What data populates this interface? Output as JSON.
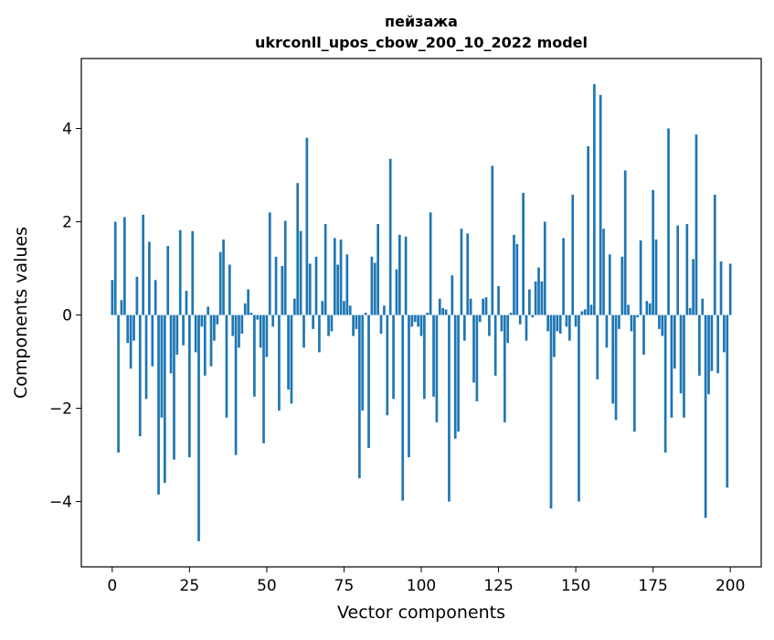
{
  "chart_data": {
    "type": "bar",
    "title_line1": "пейзажа",
    "title_line2": "ukrconll_upos_cbow_200_10_2022 model",
    "xlabel": "Vector components",
    "ylabel": "Components values",
    "xlim": [
      -10,
      210
    ],
    "ylim": [
      -5.4,
      5.5
    ],
    "xticks": [
      0,
      25,
      50,
      75,
      100,
      125,
      150,
      175,
      200
    ],
    "yticks": [
      -4,
      -2,
      0,
      2,
      4
    ],
    "ytick_labels": [
      "−4",
      "−2",
      "0",
      "2",
      "4"
    ],
    "bar_color": "#1f77b4",
    "grid": false,
    "values": [
      0.75,
      2.0,
      -2.95,
      0.32,
      2.1,
      -0.6,
      -1.15,
      -0.55,
      0.82,
      -2.6,
      2.15,
      -1.8,
      1.57,
      -1.1,
      0.75,
      -3.85,
      -2.2,
      -3.6,
      1.48,
      -1.25,
      -3.1,
      -0.85,
      1.82,
      -0.65,
      0.52,
      -3.05,
      1.8,
      -0.8,
      -4.85,
      -0.25,
      -1.3,
      0.18,
      -1.1,
      -0.55,
      -0.2,
      1.35,
      1.62,
      -2.2,
      1.08,
      -0.45,
      -3.0,
      -0.7,
      -0.4,
      0.25,
      0.55,
      0.05,
      -1.75,
      -0.1,
      -0.7,
      -2.75,
      -0.9,
      2.2,
      -0.25,
      1.25,
      -2.05,
      1.05,
      2.02,
      -1.6,
      -1.9,
      0.35,
      2.83,
      1.8,
      -0.7,
      3.8,
      1.1,
      -0.3,
      1.25,
      -0.8,
      0.3,
      1.95,
      -0.45,
      -0.35,
      1.65,
      1.08,
      1.62,
      0.3,
      1.3,
      0.2,
      -0.45,
      -0.3,
      -3.5,
      -2.05,
      0.05,
      -2.85,
      1.25,
      1.12,
      1.95,
      -0.4,
      0.2,
      -2.15,
      3.35,
      -1.8,
      0.98,
      1.72,
      -3.98,
      1.68,
      -3.05,
      -0.25,
      -0.15,
      -0.25,
      -0.45,
      -1.8,
      0.05,
      2.2,
      -1.75,
      -2.3,
      0.35,
      0.15,
      0.12,
      -4.0,
      0.85,
      -2.65,
      -2.5,
      1.85,
      -0.55,
      1.75,
      0.35,
      -1.45,
      -1.85,
      -0.15,
      0.35,
      0.38,
      -0.45,
      3.2,
      -1.3,
      0.62,
      -0.35,
      -2.3,
      -0.6,
      0.05,
      1.72,
      1.52,
      -0.2,
      2.62,
      -0.55,
      0.55,
      -0.05,
      0.72,
      1.02,
      0.72,
      2.0,
      -0.35,
      -4.15,
      -0.9,
      -0.35,
      -0.4,
      1.65,
      -0.25,
      -0.55,
      2.58,
      -0.25,
      -4.0,
      0.08,
      0.12,
      3.62,
      0.22,
      4.95,
      -1.38,
      4.72,
      1.85,
      -0.7,
      1.3,
      -1.9,
      -2.25,
      -0.3,
      1.25,
      3.1,
      0.22,
      -0.35,
      -2.5,
      -0.05,
      1.6,
      -0.85,
      0.3,
      0.25,
      2.68,
      1.62,
      -0.3,
      -0.45,
      -2.95,
      4.0,
      -2.2,
      -1.15,
      1.92,
      -1.68,
      -2.2,
      1.95,
      0.15,
      1.2,
      3.87,
      -1.3,
      0.35,
      -4.35,
      -1.7,
      -1.2,
      2.58,
      -1.25,
      1.15,
      -0.8,
      -3.7,
      1.1
    ]
  }
}
